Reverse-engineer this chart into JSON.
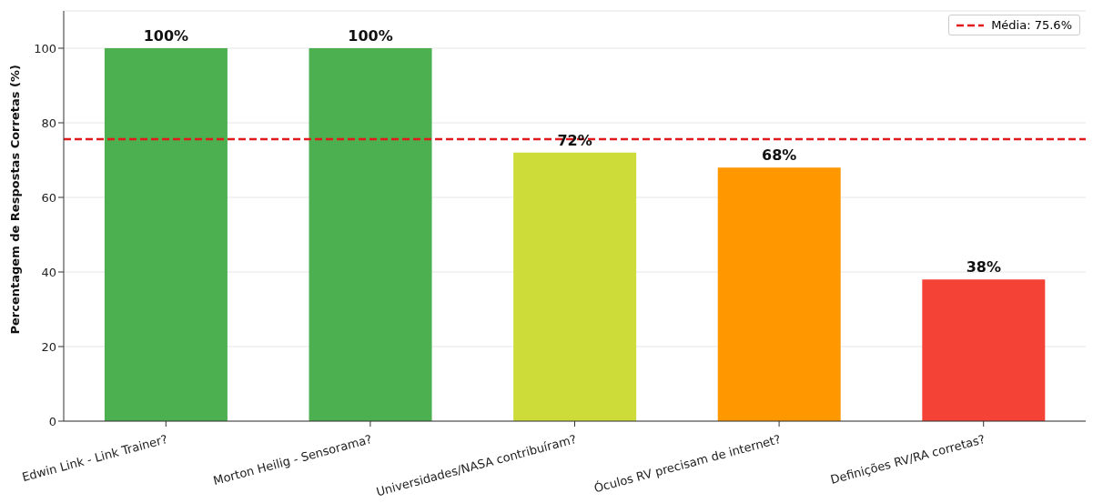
{
  "chart_data": {
    "type": "bar",
    "ylabel": "Percentagem de Respostas Corretas (%)",
    "categories": [
      "Edwin Link - Link Trainer?",
      "Morton Heilig - Sensorama?",
      "Universidades/NASA contribuíram?",
      "Óculos RV precisam de internet?",
      "Definições RV/RA corretas?"
    ],
    "values": [
      100,
      100,
      72,
      68,
      38
    ],
    "colors": [
      "#4caf50",
      "#4caf50",
      "#cddc39",
      "#ff9800",
      "#f44336"
    ],
    "value_labels": [
      "100%",
      "100%",
      "72%",
      "68%",
      "38%"
    ],
    "ylim": [
      0,
      110
    ],
    "yticks": [
      0,
      20,
      40,
      60,
      80,
      100
    ],
    "grid": "y",
    "legend": "top right",
    "ref_lines": [
      {
        "axis": "y",
        "value": 75.6,
        "label": "Média: 75.6%",
        "color": "#e31a1c",
        "line_style": "dashed"
      }
    ]
  }
}
